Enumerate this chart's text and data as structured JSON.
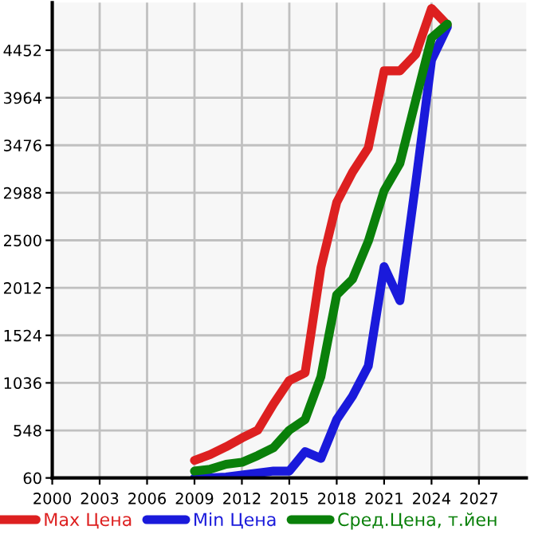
{
  "chart_data": {
    "type": "line",
    "x": [
      2009,
      2010,
      2011,
      2012,
      2013,
      2014,
      2015,
      2016,
      2017,
      2018,
      2019,
      2020,
      2021,
      2022,
      2023,
      2024,
      2025
    ],
    "series": [
      {
        "name": "Max Цена",
        "color": "#dd2020",
        "values": [
          240,
          300,
          380,
          470,
          550,
          820,
          1060,
          1140,
          2220,
          2890,
          3200,
          3450,
          4240,
          4240,
          4410,
          4880,
          4710
        ]
      },
      {
        "name": "Min Цена",
        "color": "#1a1adb",
        "values": [
          60,
          60,
          70,
          90,
          110,
          130,
          130,
          330,
          260,
          660,
          900,
          1210,
          2230,
          1880,
          3090,
          4350,
          4690
        ]
      },
      {
        "name": "Сред.Цена, т.йен",
        "color": "#0a800a",
        "values": [
          130,
          150,
          200,
          220,
          290,
          370,
          550,
          660,
          1100,
          1940,
          2100,
          2490,
          3010,
          3290,
          3940,
          4580,
          4720
        ]
      }
    ],
    "xlim": [
      2000,
      2030
    ],
    "xticks": [
      2000,
      2003,
      2006,
      2009,
      2012,
      2015,
      2018,
      2021,
      2024,
      2027
    ],
    "ylim": [
      60,
      4940
    ],
    "yticks": [
      60,
      548,
      1036,
      1524,
      2012,
      2500,
      2988,
      3476,
      3964,
      4452
    ],
    "grid": true,
    "legend": "bottom",
    "marker": "none",
    "line_style": "solid"
  }
}
